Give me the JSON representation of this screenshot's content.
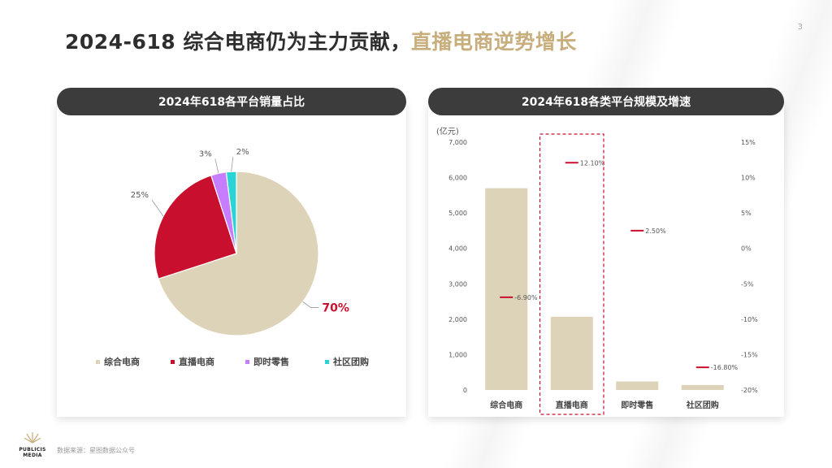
{
  "page_number": "3",
  "title": {
    "main": "2024-618  综合电商仍为主力贡献，",
    "accent": "直播电商逆势增长"
  },
  "source": "数据来源：星图数据公众号",
  "logo": {
    "line1": "PUBLICIS",
    "line2": "MEDIA"
  },
  "colors": {
    "综合电商": "#ddd3b8",
    "直播电商": "#c8102e",
    "即时零售": "#c77dff",
    "社区团购": "#2ad4d4",
    "bar": "#ddd3b8",
    "growth_marker": "#c8102e",
    "header_bg": "#3c3c3c",
    "title_accent": "#c9ae7d"
  },
  "chart_data": [
    {
      "type": "pie",
      "title": "2024年618各平台销量占比",
      "categories": [
        "综合电商",
        "直播电商",
        "即时零售",
        "社区团购"
      ],
      "values": [
        70,
        25,
        3,
        2
      ],
      "labels": [
        "70%",
        "25%",
        "3%",
        "2%"
      ],
      "legend_position": "bottom"
    },
    {
      "type": "bar",
      "title": "2024年618各类平台规模及增速",
      "ylabel": "(亿元)",
      "categories": [
        "综合电商",
        "直播电商",
        "即时零售",
        "社区团购"
      ],
      "series": [
        {
          "name": "规模",
          "values": [
            5700,
            2070,
            240,
            140
          ],
          "axis": "left"
        },
        {
          "name": "增速",
          "values": [
            -6.9,
            12.1,
            2.5,
            -16.8
          ],
          "labels": [
            "-6.90%",
            "12.10%",
            "2.50%",
            "-16.80%"
          ],
          "axis": "right"
        }
      ],
      "ylim": [
        0,
        7000
      ],
      "yticks": [
        "0",
        "1,000",
        "2,000",
        "3,000",
        "4,000",
        "5,000",
        "6,000",
        "7,000"
      ],
      "y2lim": [
        -20,
        15
      ],
      "y2ticks": [
        "-20%",
        "-15%",
        "-10%",
        "-5%",
        "0%",
        "5%",
        "10%",
        "15%"
      ],
      "highlight_category": "直播电商",
      "grid": false
    }
  ]
}
